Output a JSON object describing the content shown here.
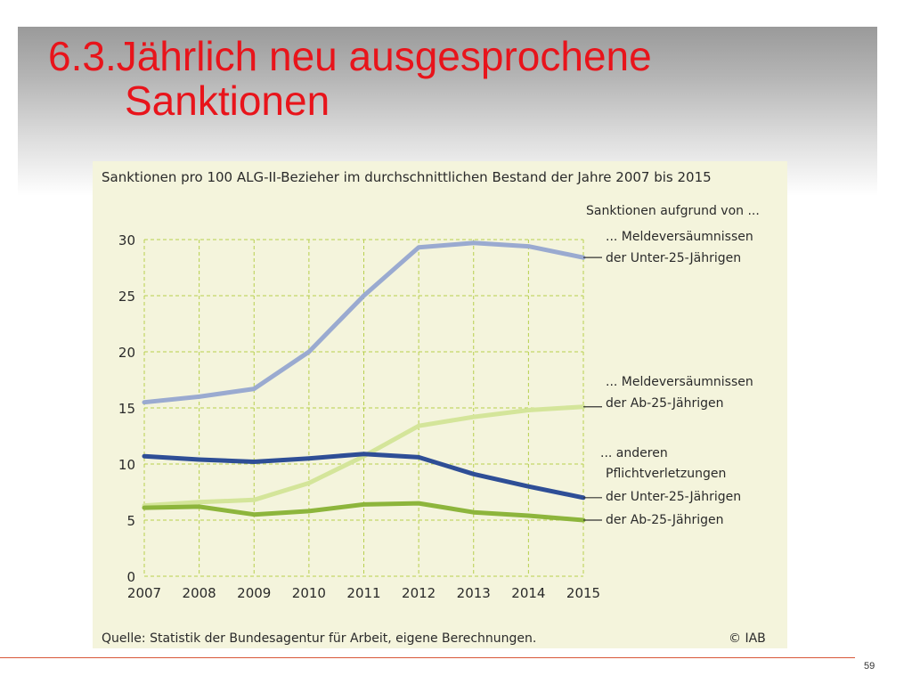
{
  "slide": {
    "title_line1": "6.3.Jährlich neu ausgesprochene",
    "title_line2": "Sanktionen",
    "page_number": "59"
  },
  "chart_data": {
    "type": "line",
    "title": "Sanktionen pro 100 ALG-II-Bezieher im durchschnittlichen Bestand der Jahre 2007 bis 2015",
    "legend_title": "Sanktionen aufgrund von ...",
    "group_label_lines": [
      "... anderen",
      "Pflichtverletzungen"
    ],
    "source": "Quelle: Statistik der Bundesagentur für Arbeit, eigene Berechnungen.",
    "copyright": "© IAB",
    "x": [
      2007,
      2008,
      2009,
      2010,
      2011,
      2012,
      2013,
      2014,
      2015
    ],
    "ylim": [
      0,
      30
    ],
    "yticks": [
      0,
      5,
      10,
      15,
      20,
      25,
      30
    ],
    "grid": true,
    "legend_placement": "right",
    "series": [
      {
        "label_lines": [
          "... Meldeversäumnissen",
          "der Unter-25-Jährigen"
        ],
        "color": "#9aaad0",
        "values": [
          15.5,
          16.0,
          16.7,
          20.0,
          25.0,
          29.3,
          29.7,
          29.4,
          28.4
        ]
      },
      {
        "label_lines": [
          "... Meldeversäumnissen",
          "der Ab-25-Jährigen"
        ],
        "color": "#d4e59a",
        "values": [
          6.3,
          6.6,
          6.8,
          8.3,
          10.7,
          13.4,
          14.2,
          14.8,
          15.1
        ]
      },
      {
        "label_lines": [
          "der Unter-25-Jährigen"
        ],
        "color": "#2e4e96",
        "values": [
          10.7,
          10.4,
          10.2,
          10.5,
          10.9,
          10.6,
          9.1,
          8.0,
          7.0
        ]
      },
      {
        "label_lines": [
          "der Ab-25-Jährigen"
        ],
        "color": "#8db53c",
        "values": [
          6.1,
          6.2,
          5.5,
          5.8,
          6.4,
          6.5,
          5.7,
          5.4,
          5.0
        ]
      }
    ]
  }
}
